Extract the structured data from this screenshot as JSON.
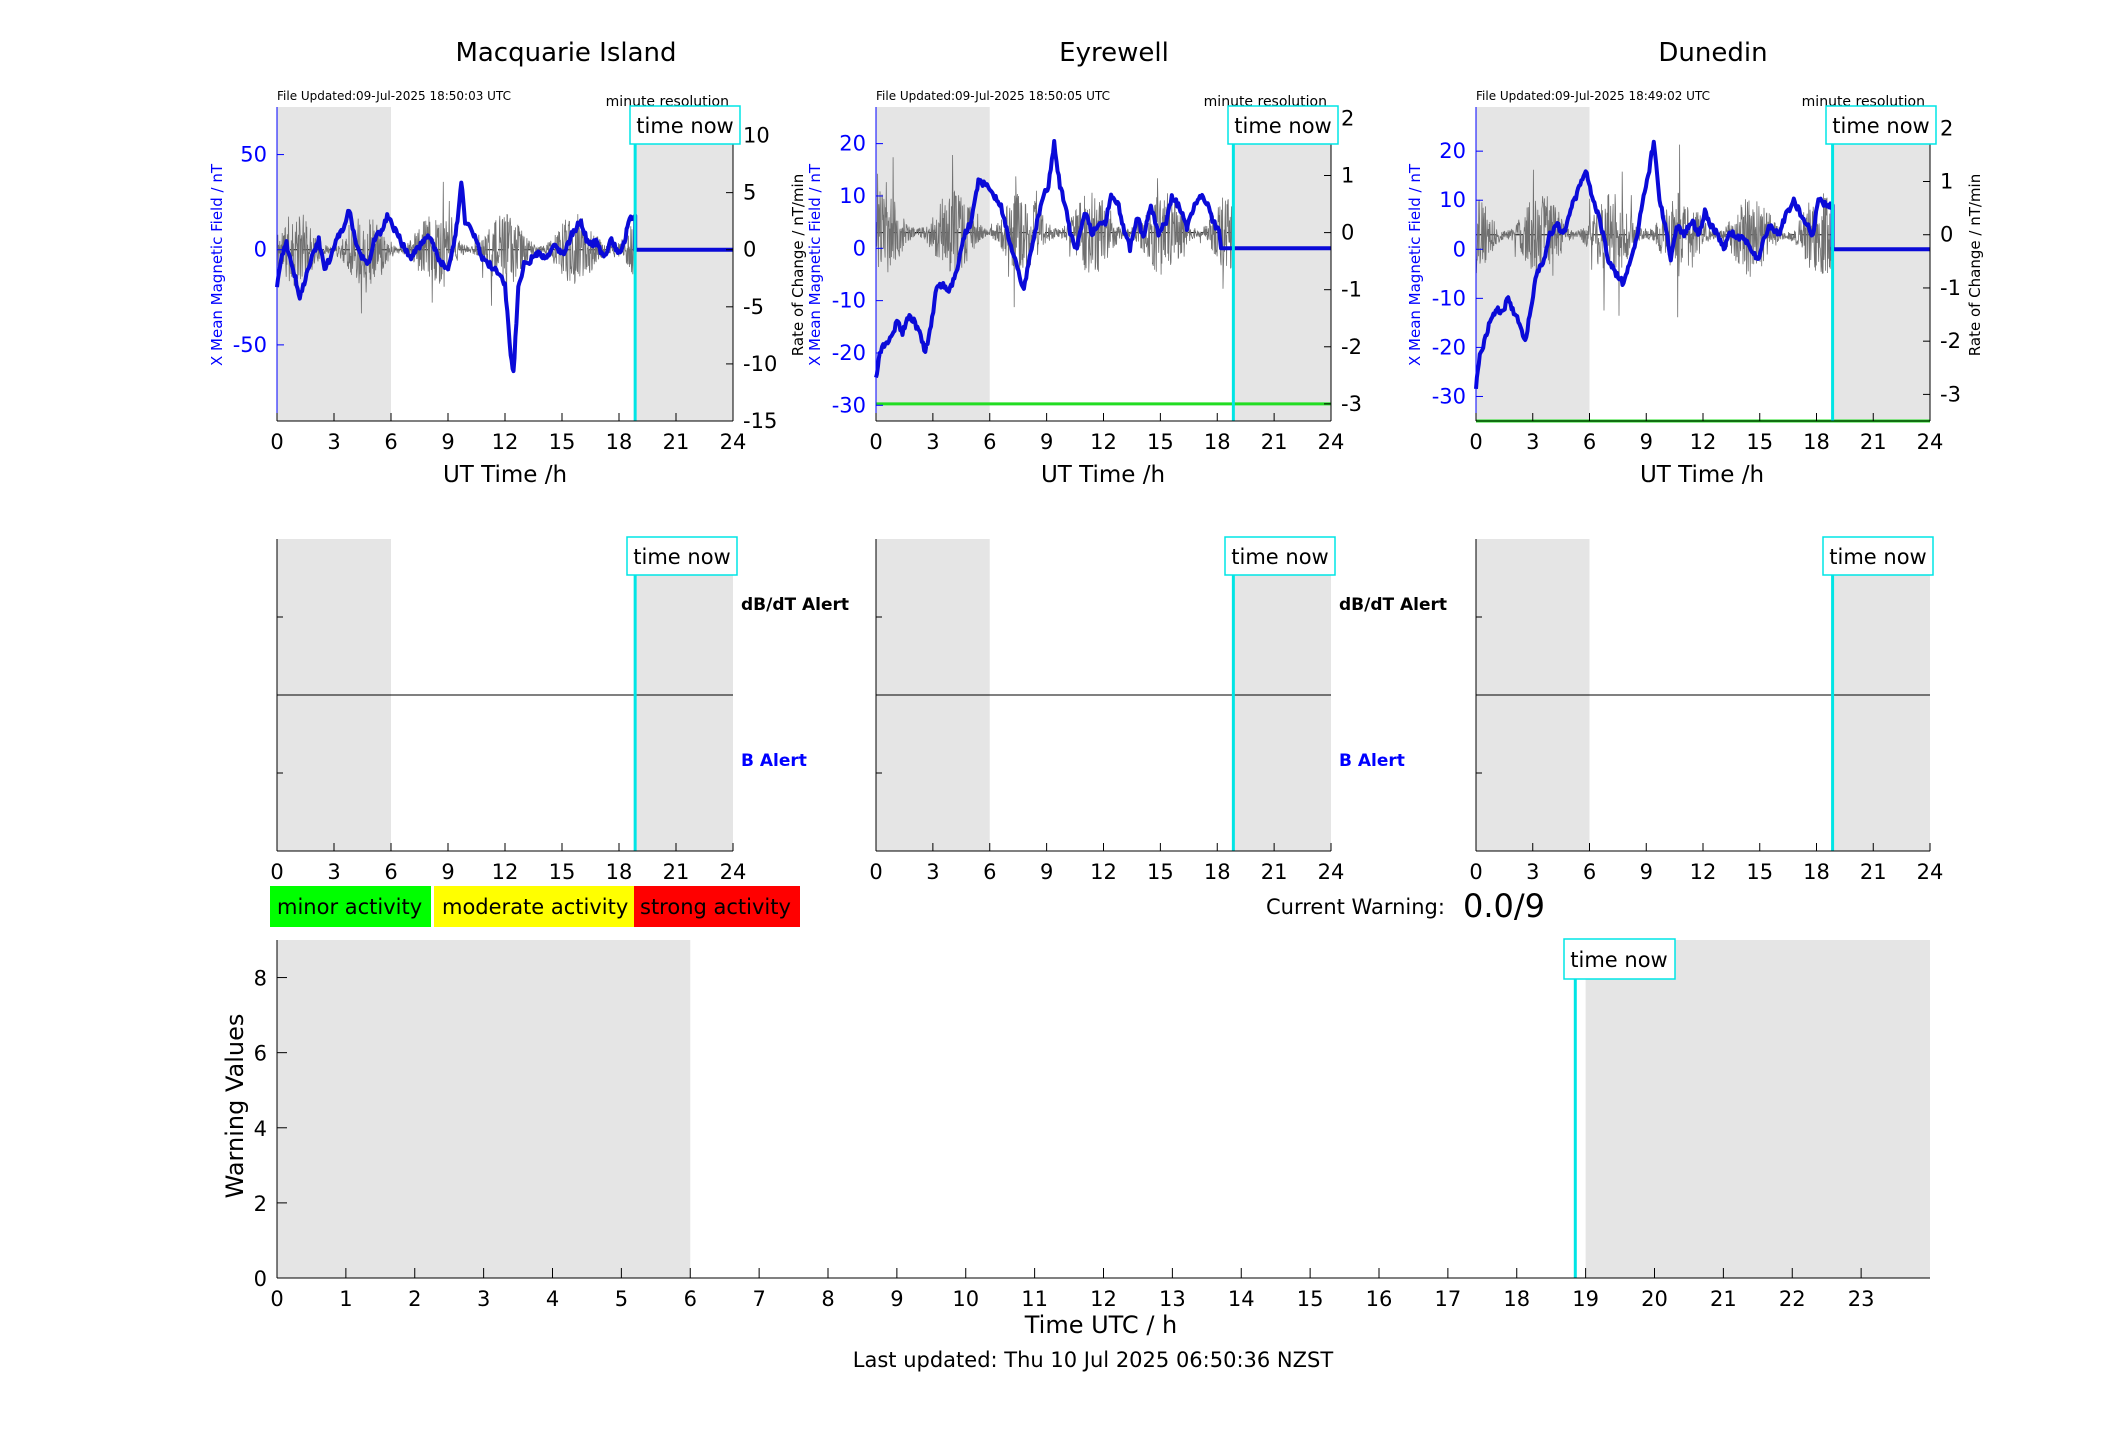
{
  "stations": [
    {
      "name": "Macquarie Island",
      "file_updated": "File Updated:09-Jul-2025 18:50:03 UTC",
      "resolution": "minute resolution",
      "ylabel_left": "X Mean Magnetic Field / nT",
      "ylabel_right": "",
      "xlabel": "UT Time /h",
      "time_now_label": "time now",
      "now_hour": 18.85,
      "left_ylim": [
        -90,
        75
      ],
      "left_ticks": [
        50,
        0,
        -50
      ],
      "right_ylim": [
        -15,
        12.5
      ],
      "right_ticks": [
        10,
        5,
        0,
        -5,
        -10,
        -15
      ],
      "threshold_level": null,
      "field": [
        [
          0,
          -20
        ],
        [
          0.2,
          -5
        ],
        [
          0.5,
          3
        ],
        [
          0.8,
          -8
        ],
        [
          1.2,
          -25
        ],
        [
          1.5,
          -15
        ],
        [
          1.9,
          -2
        ],
        [
          2.2,
          5
        ],
        [
          2.5,
          -10
        ],
        [
          2.8,
          -5
        ],
        [
          3.1,
          5
        ],
        [
          3.5,
          12
        ],
        [
          3.8,
          22
        ],
        [
          4.1,
          5
        ],
        [
          4.4,
          -3
        ],
        [
          4.8,
          -8
        ],
        [
          5.1,
          5
        ],
        [
          5.5,
          10
        ],
        [
          5.8,
          18
        ],
        [
          6.1,
          12
        ],
        [
          6.5,
          5
        ],
        [
          7,
          -5
        ],
        [
          7.5,
          2
        ],
        [
          8,
          8
        ],
        [
          8.5,
          -5
        ],
        [
          9,
          -10
        ],
        [
          9.3,
          2
        ],
        [
          9.5,
          15
        ],
        [
          9.7,
          35
        ],
        [
          9.9,
          15
        ],
        [
          10.3,
          10
        ],
        [
          10.8,
          -5
        ],
        [
          11.2,
          -8
        ],
        [
          11.6,
          -12
        ],
        [
          12,
          -18
        ],
        [
          12.3,
          -55
        ],
        [
          12.45,
          -65
        ],
        [
          12.7,
          -20
        ],
        [
          13,
          -8
        ],
        [
          13.4,
          -5
        ],
        [
          13.8,
          -2
        ],
        [
          14.2,
          -5
        ],
        [
          14.6,
          2
        ],
        [
          15.1,
          -3
        ],
        [
          15.5,
          8
        ],
        [
          16,
          15
        ],
        [
          16.4,
          2
        ],
        [
          16.8,
          4
        ],
        [
          17.2,
          -5
        ],
        [
          17.6,
          5
        ],
        [
          18,
          -2
        ],
        [
          18.3,
          5
        ],
        [
          18.5,
          15
        ],
        [
          18.85,
          18
        ],
        [
          18.85,
          0
        ],
        [
          24,
          0
        ]
      ],
      "deriv_seed": 11,
      "deriv_amp": 3.2
    },
    {
      "name": "Eyrewell",
      "file_updated": "File Updated:09-Jul-2025 18:50:05 UTC",
      "resolution": "minute resolution",
      "ylabel_left": "X Mean Magnetic Field / nT",
      "ylabel_right": "Rate of Change / nT/min",
      "xlabel": "UT Time /h",
      "time_now_label": "time now",
      "now_hour": 18.85,
      "left_ylim": [
        -33,
        27
      ],
      "left_ticks": [
        20,
        10,
        0,
        -10,
        -20,
        -30
      ],
      "right_ylim": [
        -3.3,
        2.2
      ],
      "right_ticks": [
        2,
        1,
        0,
        -1,
        -2,
        -3
      ],
      "threshold_level": -3,
      "field": [
        [
          0,
          -25
        ],
        [
          0.2,
          -20
        ],
        [
          0.5,
          -18
        ],
        [
          0.8,
          -17
        ],
        [
          1.1,
          -14
        ],
        [
          1.4,
          -16
        ],
        [
          1.7,
          -13
        ],
        [
          2,
          -14
        ],
        [
          2.3,
          -16
        ],
        [
          2.6,
          -20
        ],
        [
          2.9,
          -15
        ],
        [
          3.2,
          -7
        ],
        [
          3.6,
          -7
        ],
        [
          3.9,
          -8
        ],
        [
          4.3,
          -4
        ],
        [
          4.6,
          2
        ],
        [
          5,
          5
        ],
        [
          5.4,
          13
        ],
        [
          5.8,
          12
        ],
        [
          6.2,
          10
        ],
        [
          6.6,
          8
        ],
        [
          7,
          2
        ],
        [
          7.4,
          -3
        ],
        [
          7.8,
          -8
        ],
        [
          8.1,
          -2
        ],
        [
          8.5,
          5
        ],
        [
          8.8,
          10
        ],
        [
          9.1,
          12
        ],
        [
          9.4,
          20
        ],
        [
          9.7,
          12
        ],
        [
          10,
          8
        ],
        [
          10.3,
          2
        ],
        [
          10.6,
          0
        ],
        [
          11,
          7
        ],
        [
          11.4,
          3
        ],
        [
          11.8,
          5
        ],
        [
          12.1,
          5
        ],
        [
          12.4,
          10
        ],
        [
          12.8,
          8
        ],
        [
          13.1,
          3
        ],
        [
          13.4,
          0
        ],
        [
          13.8,
          6
        ],
        [
          14.1,
          2
        ],
        [
          14.5,
          8
        ],
        [
          14.9,
          3
        ],
        [
          15.3,
          5
        ],
        [
          15.6,
          10
        ],
        [
          16,
          8
        ],
        [
          16.4,
          4
        ],
        [
          16.8,
          8
        ],
        [
          17.2,
          10
        ],
        [
          17.5,
          8
        ],
        [
          17.8,
          5
        ],
        [
          18.1,
          3
        ],
        [
          18.2,
          0
        ],
        [
          24,
          0
        ]
      ],
      "deriv_seed": 23,
      "deriv_amp": 0.75
    },
    {
      "name": "Dunedin",
      "file_updated": "File Updated:09-Jul-2025 18:49:02 UTC",
      "resolution": "minute resolution",
      "ylabel_left": "X Mean Magnetic Field / nT",
      "ylabel_right": "Rate of Change / nT/min",
      "xlabel": "UT Time /h",
      "time_now_label": "time now",
      "now_hour": 18.85,
      "left_ylim": [
        -35,
        29
      ],
      "left_ticks": [
        20,
        10,
        0,
        -10,
        -20,
        -30
      ],
      "right_ylim": [
        -3.5,
        2.4
      ],
      "right_ticks": [
        2,
        1,
        0,
        -1,
        -2,
        -3
      ],
      "threshold_level": -3.5,
      "field": [
        [
          0,
          -28
        ],
        [
          0.2,
          -22
        ],
        [
          0.5,
          -18
        ],
        [
          0.8,
          -14
        ],
        [
          1.1,
          -12
        ],
        [
          1.4,
          -13
        ],
        [
          1.7,
          -10
        ],
        [
          2,
          -13
        ],
        [
          2.3,
          -15
        ],
        [
          2.6,
          -19
        ],
        [
          2.9,
          -12
        ],
        [
          3.2,
          -5
        ],
        [
          3.6,
          -2
        ],
        [
          3.9,
          3
        ],
        [
          4.3,
          5
        ],
        [
          4.6,
          3
        ],
        [
          5,
          8
        ],
        [
          5.4,
          12
        ],
        [
          5.8,
          16
        ],
        [
          6.2,
          10
        ],
        [
          6.6,
          5
        ],
        [
          7,
          -2
        ],
        [
          7.4,
          -5
        ],
        [
          7.8,
          -7
        ],
        [
          8.1,
          -3
        ],
        [
          8.5,
          2
        ],
        [
          8.8,
          10
        ],
        [
          9.1,
          15
        ],
        [
          9.4,
          22
        ],
        [
          9.7,
          10
        ],
        [
          10,
          5
        ],
        [
          10.3,
          -2
        ],
        [
          10.6,
          5
        ],
        [
          11,
          3
        ],
        [
          11.4,
          6
        ],
        [
          11.8,
          3
        ],
        [
          12.1,
          8
        ],
        [
          12.4,
          5
        ],
        [
          12.8,
          3
        ],
        [
          13.1,
          0
        ],
        [
          13.4,
          4
        ],
        [
          13.8,
          2
        ],
        [
          14.1,
          3
        ],
        [
          14.5,
          0
        ],
        [
          14.9,
          -2
        ],
        [
          15.3,
          3
        ],
        [
          15.6,
          5
        ],
        [
          16,
          3
        ],
        [
          16.4,
          7
        ],
        [
          16.8,
          10
        ],
        [
          17.2,
          7
        ],
        [
          17.5,
          5
        ],
        [
          17.8,
          3
        ],
        [
          18.1,
          10
        ],
        [
          18.5,
          9
        ],
        [
          18.85,
          9
        ],
        [
          18.85,
          0
        ],
        [
          24,
          0
        ]
      ],
      "deriv_seed": 37,
      "deriv_amp": 0.8
    }
  ],
  "alerts": {
    "dbdt_label": "dB/dT Alert",
    "b_label": "B Alert",
    "time_now_label": "time now"
  },
  "legend": {
    "minor": "minor activity",
    "moderate": "moderate activity",
    "strong": "strong activity"
  },
  "current_warning": {
    "label": "Current Warning:",
    "value": "0.0/9"
  },
  "chart_data": {
    "type": "bar",
    "title": "",
    "xlabel": "Time UTC / h",
    "ylabel": "Warning Values",
    "xlim": [
      0,
      24
    ],
    "ylim": [
      0,
      9
    ],
    "x_ticks": [
      0,
      1,
      2,
      3,
      4,
      5,
      6,
      7,
      8,
      9,
      10,
      11,
      12,
      13,
      14,
      15,
      16,
      17,
      18,
      19,
      20,
      21,
      22,
      23
    ],
    "y_ticks": [
      0,
      2,
      4,
      6,
      8
    ],
    "night_shading": [
      [
        0,
        6
      ],
      [
        19,
        24
      ]
    ],
    "time_now_hour": 18.85,
    "time_now_label": "time now",
    "values": []
  },
  "colors": {
    "field": "#0a0ad8",
    "axis_blue": "#0000ff",
    "time_now": "#00e5e5",
    "shade": "#e5e5e5",
    "threshold": "#22dd22",
    "minor": "#00ff00",
    "moderate": "#ffff00",
    "strong": "#ff0000"
  },
  "footer": {
    "last_updated": "Last updated: Thu 10 Jul 2025 06:50:36 NZST"
  }
}
